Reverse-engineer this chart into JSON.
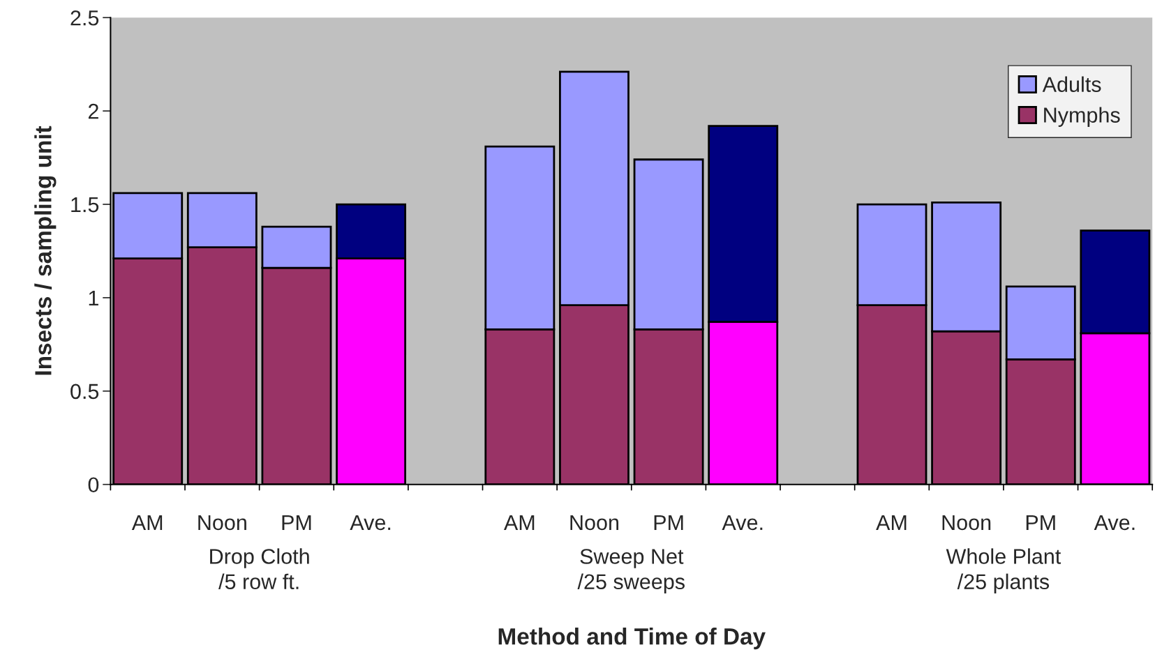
{
  "chart_data": {
    "type": "bar",
    "stacked": true,
    "xlabel": "Method and Time of Day",
    "ylabel": "Insects / sampling unit",
    "categories": [
      "AM",
      "Noon",
      "PM",
      "Ave.",
      null,
      "AM",
      "Noon",
      "PM",
      "Ave.",
      null,
      "AM",
      "Noon",
      "PM",
      "Ave."
    ],
    "series": [
      {
        "name": "Nymphs",
        "color": "#993366",
        "colors": [
          "#993366",
          "#993366",
          "#993366",
          "#ff00ff",
          null,
          "#993366",
          "#993366",
          "#993366",
          "#ff00ff",
          null,
          "#993366",
          "#993366",
          "#993366",
          "#ff00ff"
        ],
        "values": [
          1.21,
          1.27,
          1.16,
          1.21,
          null,
          0.83,
          0.96,
          0.83,
          0.87,
          null,
          0.96,
          0.82,
          0.67,
          0.81
        ]
      },
      {
        "name": "Adults",
        "color": "#9999ff",
        "colors": [
          "#9999ff",
          "#9999ff",
          "#9999ff",
          "#000080",
          null,
          "#9999ff",
          "#9999ff",
          "#9999ff",
          "#000080",
          null,
          "#9999ff",
          "#9999ff",
          "#9999ff",
          "#000080"
        ],
        "values": [
          0.35,
          0.29,
          0.22,
          0.29,
          null,
          0.98,
          1.25,
          0.91,
          1.05,
          null,
          0.54,
          0.69,
          0.39,
          0.55
        ]
      }
    ],
    "annotations": [
      "Drop Cloth\n/5 row ft.",
      "Sweep Net\n/25 sweeps",
      "Whole Plant\n/25 plants"
    ],
    "ylim": [
      0,
      2.5
    ],
    "yticks": [
      0,
      0.5,
      1,
      1.5,
      2,
      2.5
    ],
    "grid": false,
    "legend": "top right"
  }
}
